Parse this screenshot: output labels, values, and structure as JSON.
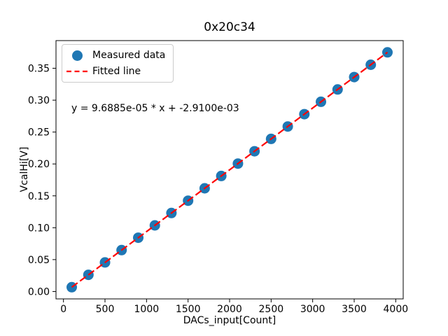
{
  "chart_data": {
    "type": "scatter",
    "title": "0x20c34",
    "xlabel": "DACs_input[Count]",
    "ylabel": "VcalHi[V]",
    "annotation": "y = 9.6885e-05 * x + -2.9100e-03",
    "legend": [
      "Measured data",
      "Fitted line"
    ],
    "legend_position": "upper left",
    "grid": false,
    "x": [
      100,
      300,
      500,
      700,
      900,
      1100,
      1300,
      1500,
      1700,
      1900,
      2100,
      2300,
      2500,
      2700,
      2900,
      3100,
      3300,
      3500,
      3700,
      3900
    ],
    "y": [
      0.00678,
      0.02616,
      0.04553,
      0.06491,
      0.08429,
      0.10366,
      0.12304,
      0.14242,
      0.16179,
      0.18117,
      0.20055,
      0.21993,
      0.2393,
      0.25868,
      0.27806,
      0.29743,
      0.31681,
      0.33619,
      0.35556,
      0.37494
    ],
    "fit": {
      "slope": 9.6885e-05,
      "intercept": -0.00291
    },
    "xlim": [
      -90,
      4090
    ],
    "ylim": [
      -0.0116,
      0.3934
    ],
    "xticks": [
      0,
      500,
      1000,
      1500,
      2000,
      2500,
      3000,
      3500,
      4000
    ],
    "yticks": [
      0.0,
      0.05,
      0.1,
      0.15,
      0.2,
      0.25,
      0.3,
      0.35
    ],
    "colors": {
      "marker": "#1f77b4",
      "fit_line": "#ff0000",
      "spine": "#000000",
      "text": "#000000",
      "legend_border": "#cccccc"
    }
  }
}
